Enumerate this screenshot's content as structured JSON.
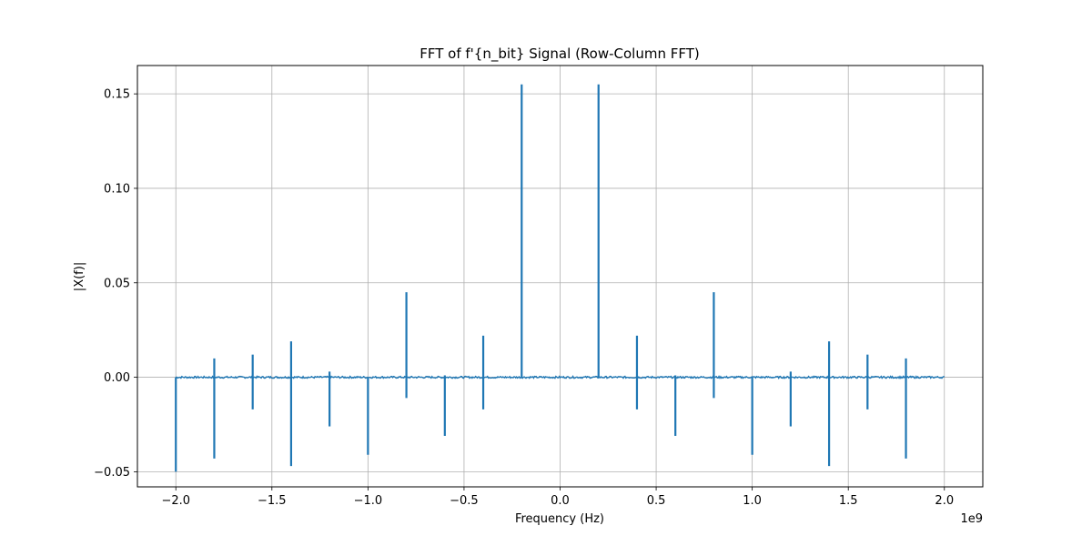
{
  "chart_data": {
    "type": "line",
    "title": "FFT of f'{n_bit} Signal (Row-Column FFT)",
    "xlabel": "Frequency (Hz)",
    "ylabel": "|X(f)|",
    "x_offset_label": "1e9",
    "x_scale": 1000000000,
    "xlim": [
      -2200000000,
      2200000000
    ],
    "ylim": [
      -0.058,
      0.165
    ],
    "xticks": [
      -2000000000,
      -1500000000,
      -1000000000,
      -500000000,
      0,
      500000000,
      1000000000,
      1500000000,
      2000000000
    ],
    "xtick_labels": [
      "−2.0",
      "−1.5",
      "−1.0",
      "−0.5",
      "0.0",
      "0.5",
      "1.0",
      "1.5",
      "2.0"
    ],
    "yticks": [
      -0.05,
      0,
      0.05,
      0.1,
      0.15
    ],
    "ytick_labels": [
      "−0.05",
      "0.00",
      "0.05",
      "0.10",
      "0.15"
    ],
    "grid": true,
    "baseline_noise": 0.0005,
    "series": [
      {
        "color": "#1f77b4",
        "x_range": [
          -2000000000,
          2000000000
        ],
        "spikes": [
          {
            "x": -2000000000,
            "max": 0.0,
            "min": -0.05
          },
          {
            "x": -1800000000,
            "max": 0.01,
            "min": -0.043
          },
          {
            "x": -1600000000,
            "max": 0.012,
            "min": -0.017
          },
          {
            "x": -1400000000,
            "max": 0.019,
            "min": -0.047
          },
          {
            "x": -1200000000,
            "max": 0.003,
            "min": -0.026
          },
          {
            "x": -1000000000,
            "max": 0.0,
            "min": -0.041
          },
          {
            "x": -800000000,
            "max": 0.045,
            "min": -0.011
          },
          {
            "x": -600000000,
            "max": 0.001,
            "min": -0.031
          },
          {
            "x": -400000000,
            "max": 0.022,
            "min": -0.017
          },
          {
            "x": -200000000,
            "max": 0.155,
            "min": 0.0
          },
          {
            "x": 200000000,
            "max": 0.155,
            "min": 0.0
          },
          {
            "x": 400000000,
            "max": 0.022,
            "min": -0.017
          },
          {
            "x": 600000000,
            "max": 0.001,
            "min": -0.031
          },
          {
            "x": 800000000,
            "max": 0.045,
            "min": -0.011
          },
          {
            "x": 1000000000,
            "max": 0.0,
            "min": -0.041
          },
          {
            "x": 1200000000,
            "max": 0.003,
            "min": -0.026
          },
          {
            "x": 1400000000,
            "max": 0.019,
            "min": -0.047
          },
          {
            "x": 1600000000,
            "max": 0.012,
            "min": -0.017
          },
          {
            "x": 1800000000,
            "max": 0.01,
            "min": -0.043
          }
        ]
      }
    ]
  }
}
